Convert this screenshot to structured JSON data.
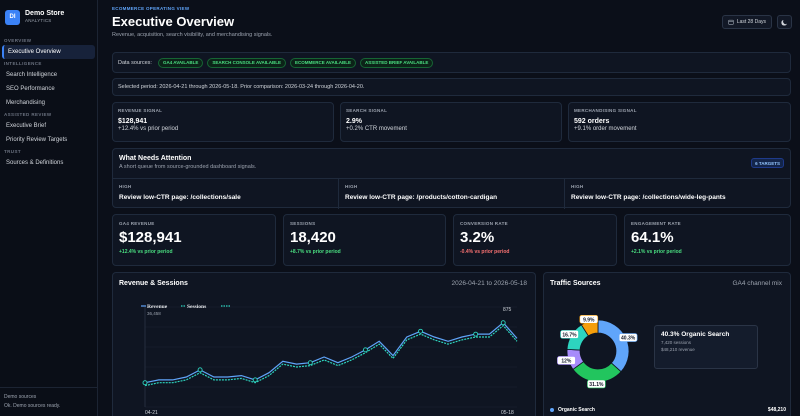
{
  "brand": {
    "logo": "DI",
    "name": "Demo Store",
    "sub": "ANALYTICS"
  },
  "nav": {
    "overview_section": "OVERVIEW",
    "executive_overview": "Executive Overview",
    "intelligence_section": "INTELLIGENCE",
    "search_intelligence": "Search Intelligence",
    "seo_performance": "SEO Performance",
    "merchandising": "Merchandising",
    "brief_section": "ASSISTED REVIEW",
    "executive_brief": "Executive Brief",
    "priority_review": "Priority Review Targets",
    "trust_section": "TRUST",
    "sources_definitions": "Sources & Definitions"
  },
  "footer": {
    "line1": "Demo sources",
    "line2": "Ok. Demo sources ready."
  },
  "header": {
    "eyebrow": "ECOMMERCE OPERATING VIEW",
    "title": "Executive Overview",
    "subtitle": "Revenue, acquisition, search visibility, and merchandising signals.",
    "date_range": "Last 28 Days"
  },
  "sources": {
    "label": "Data sources:",
    "pills": [
      "GA4 AVAILABLE",
      "SEARCH CONSOLE AVAILABLE",
      "ECOMMERCE AVAILABLE",
      "ASSISTED BRIEF AVAILABLE"
    ]
  },
  "period": "Selected period: 2026-04-21 through 2026-05-18. Prior comparison: 2026-03-24 through 2026-04-20.",
  "signals": [
    {
      "label": "REVENUE SIGNAL",
      "value": "$128,941",
      "delta": "+12.4% vs prior period"
    },
    {
      "label": "SEARCH SIGNAL",
      "value": "2.9%",
      "delta": "+0.2% CTR movement"
    },
    {
      "label": "MERCHANDISING SIGNAL",
      "value": "592 orders",
      "delta": "+9.1% order movement"
    }
  ],
  "attention": {
    "title": "What Needs Attention",
    "subtitle": "A short queue from source-grounded dashboard signals.",
    "badge": "6 TARGETS",
    "items": [
      {
        "priority": "HIGH",
        "text": "Review low-CTR page: /collections/sale"
      },
      {
        "priority": "HIGH",
        "text": "Review low-CTR page: /products/cotton-cardigan"
      },
      {
        "priority": "HIGH",
        "text": "Review low-CTR page: /collections/wide-leg-pants"
      }
    ]
  },
  "kpis": [
    {
      "label": "GA4 REVENUE",
      "value": "$128,941",
      "delta": "+12.4% vs prior period",
      "color": "#4ade80"
    },
    {
      "label": "SESSIONS",
      "value": "18,420",
      "delta": "+8.7% vs prior period",
      "color": "#4ade80"
    },
    {
      "label": "CONVERSION RATE",
      "value": "3.2%",
      "delta": "-0.4% vs prior period",
      "color": "#f87171"
    },
    {
      "label": "ENGAGEMENT RATE",
      "value": "64.1%",
      "delta": "+2.1% vs prior period",
      "color": "#4ade80"
    }
  ],
  "revenue_chart": {
    "title": "Revenue & Sessions",
    "range": "2026-04-21 to 2026-05-18"
  },
  "traffic": {
    "title": "Traffic Sources",
    "subtitle": "GA4 channel mix",
    "tooltip_title": "40.3% Organic Search",
    "tooltip_sessions": "7,420 sessions",
    "tooltip_revenue": "$48,210 revenue",
    "legend_name": "Organic Search",
    "legend_value": "$48,210"
  },
  "chart_data": [
    {
      "type": "line",
      "title": "Revenue & Sessions",
      "x_labels": [
        "04-21",
        "05-18"
      ],
      "series": [
        {
          "name": "Revenue",
          "color": "#60a5fa",
          "style": "solid",
          "values": [
            6.7,
            6.9,
            6.9,
            7.1,
            7.6,
            7.1,
            7.1,
            7.2,
            6.9,
            7.4,
            8.2,
            8.0,
            8.1,
            8.5,
            8.1,
            8.5,
            9.0,
            9.6,
            8.6,
            9.9,
            10.3,
            9.9,
            9.6,
            9.9,
            10.1,
            10.1,
            10.9,
            9.8
          ]
        },
        {
          "name": "Sessions",
          "color": "#2dd4bf",
          "style": "dashed",
          "values": [
            6.5,
            6.7,
            6.7,
            6.9,
            7.4,
            6.9,
            6.9,
            7.0,
            6.7,
            7.2,
            8.0,
            7.8,
            7.9,
            8.3,
            7.9,
            8.3,
            8.8,
            9.4,
            8.4,
            9.7,
            10.1,
            9.7,
            9.4,
            9.7,
            9.9,
            9.9,
            10.7,
            9.6
          ]
        }
      ],
      "annotations": [
        "36,458",
        "875"
      ]
    },
    {
      "type": "pie",
      "title": "Traffic Sources",
      "slices": [
        {
          "label": "40.3%",
          "value": 40.3,
          "color": "#60a5fa"
        },
        {
          "label": "31.1%",
          "value": 31.1,
          "color": "#22c55e"
        },
        {
          "label": "12%",
          "value": 12.0,
          "color": "#a78bfa"
        },
        {
          "label": "16.7%",
          "value": 16.7,
          "color": "#2dd4bf"
        },
        {
          "label": "9.9%",
          "value": 9.9,
          "color": "#f59e0b"
        }
      ]
    }
  ]
}
